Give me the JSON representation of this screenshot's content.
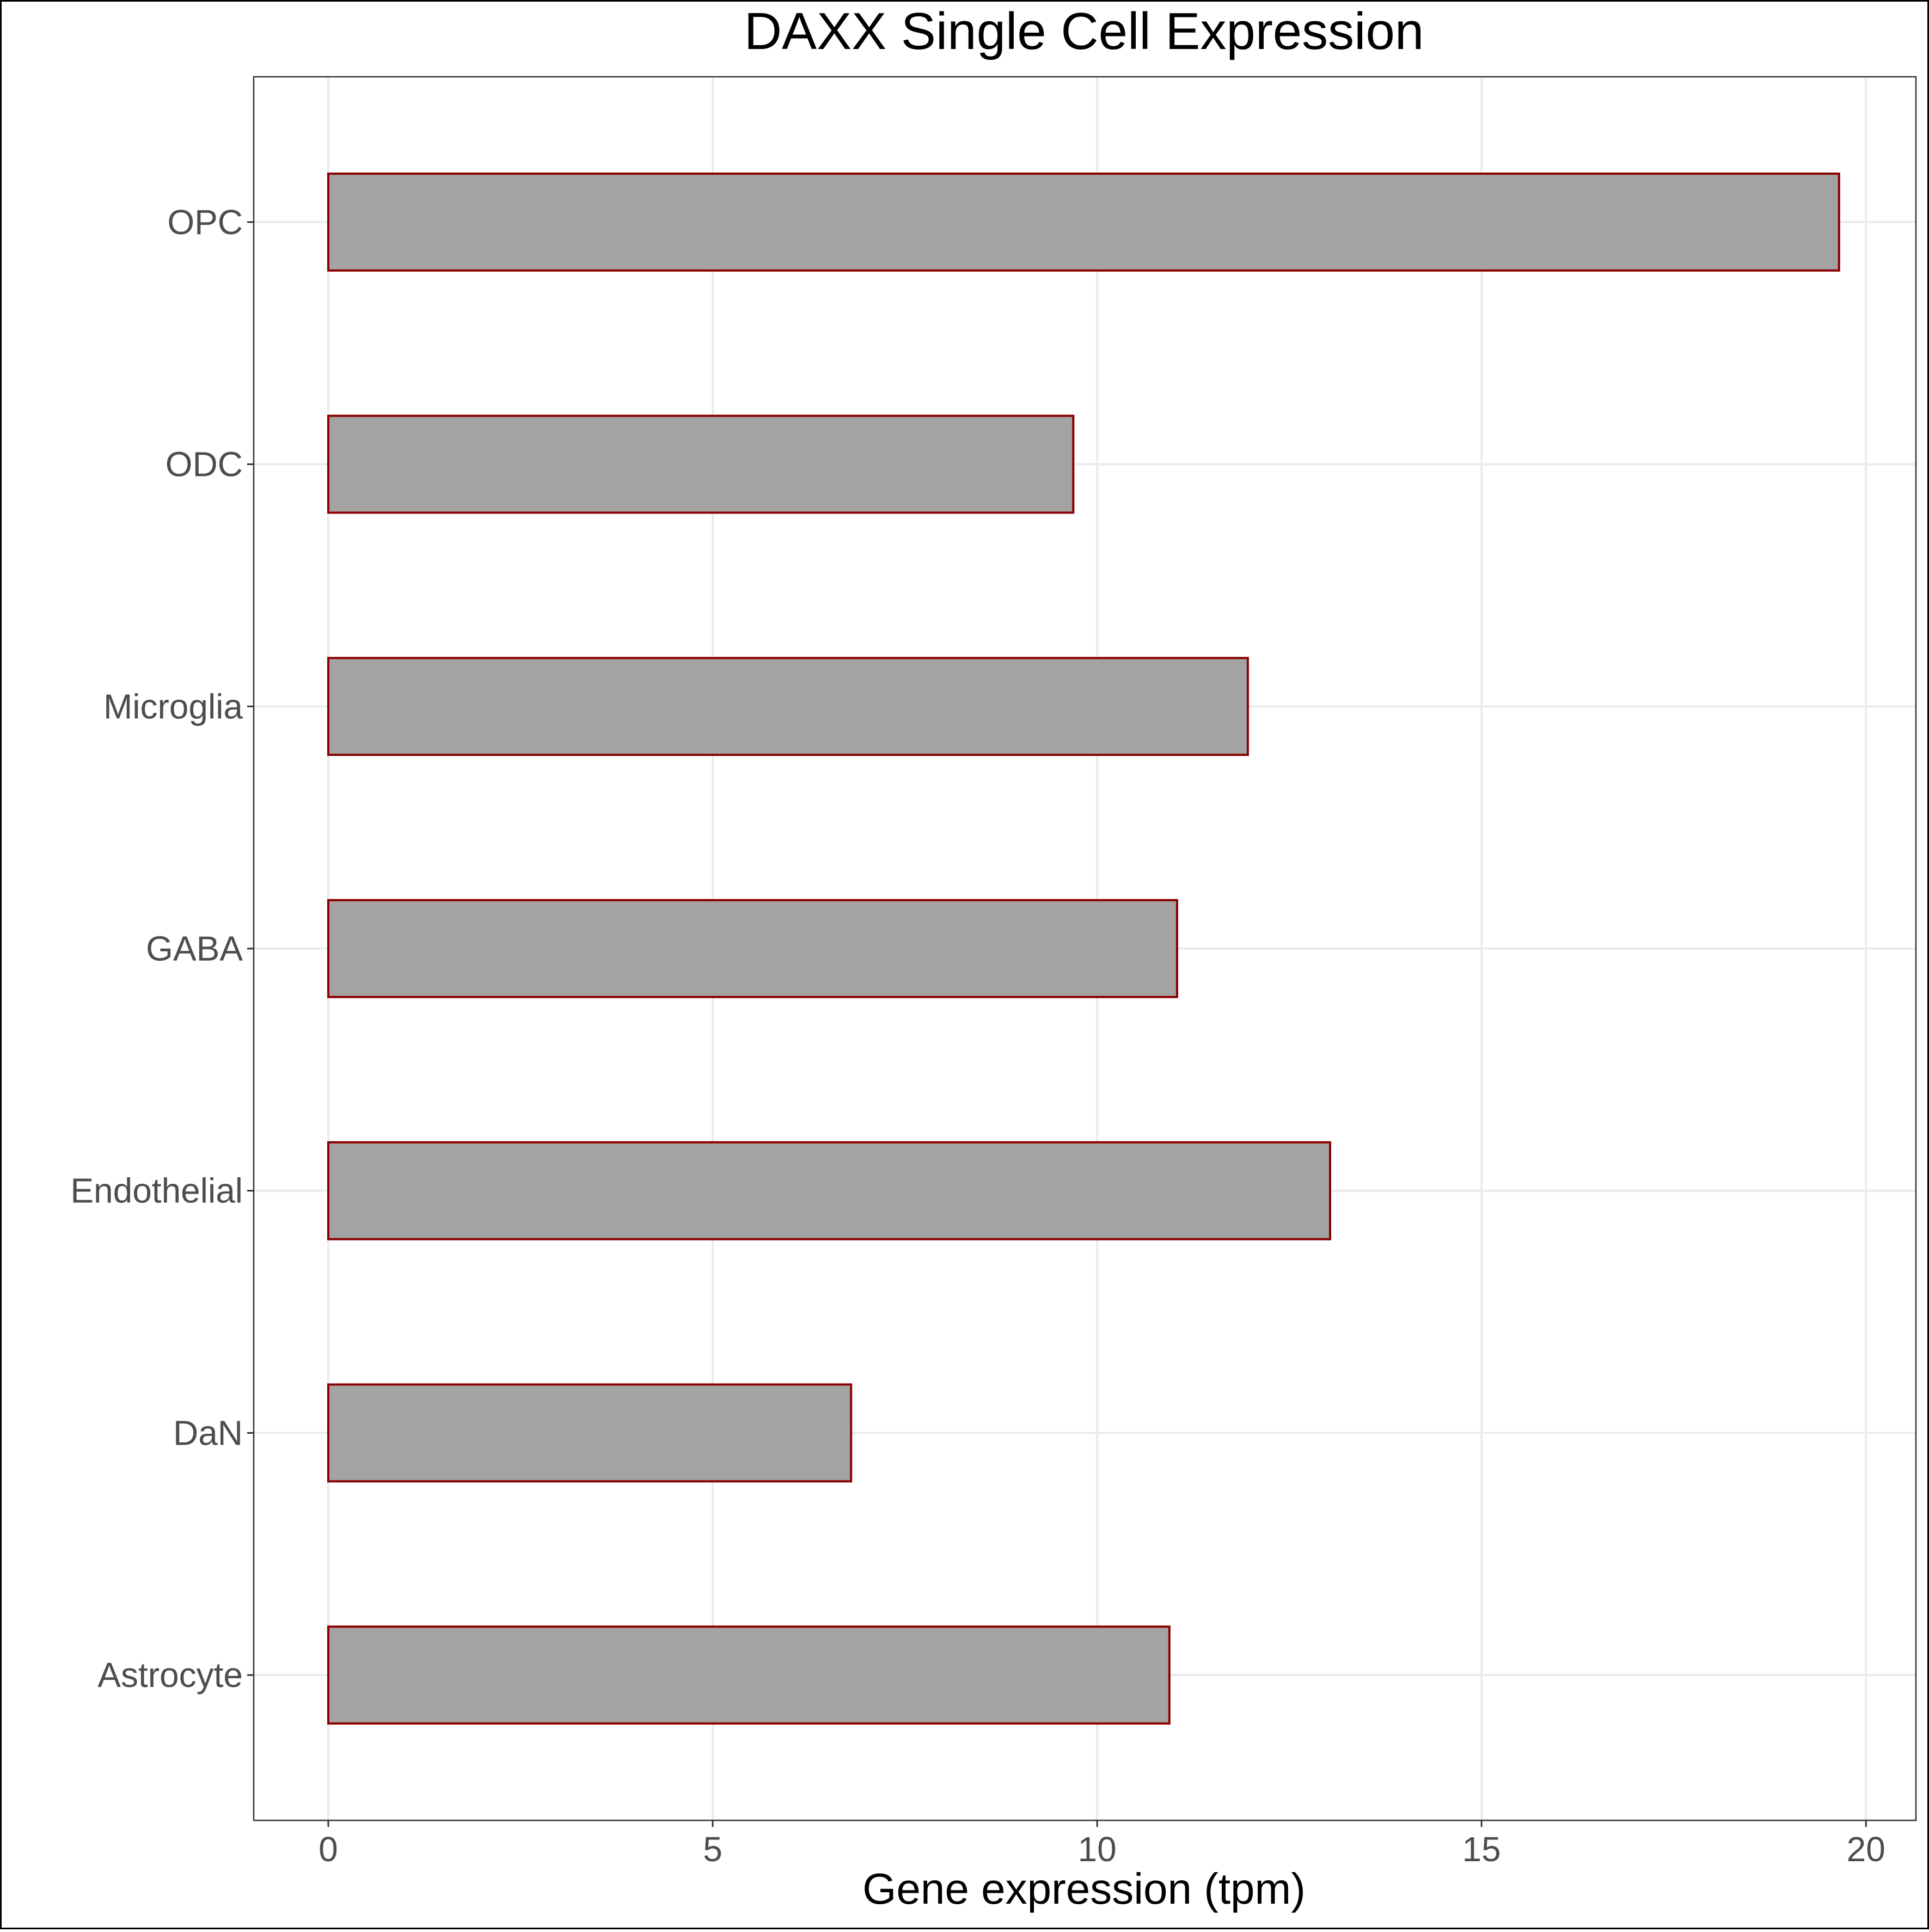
{
  "chart_data": {
    "type": "bar",
    "orientation": "horizontal",
    "title": "DAXX Single Cell Expression",
    "xlabel": "Gene expression (tpm)",
    "ylabel": "",
    "categories": [
      "OPC",
      "ODC",
      "Microglia",
      "GABA",
      "Endothelial",
      "DaN",
      "Astrocyte"
    ],
    "values": [
      19.65,
      9.69,
      11.96,
      11.04,
      13.03,
      6.8,
      10.94
    ],
    "xlim": [
      -0.97,
      20.65
    ],
    "xticks": [
      0,
      5,
      10,
      15,
      20
    ],
    "xtick_labels": [
      "0",
      "5",
      "10",
      "15",
      "20"
    ],
    "grid": true,
    "legend": "none",
    "colors": {
      "bar_fill": "#a3a3a3",
      "bar_stroke": "#8b0000",
      "grid": "#ebebeb",
      "axis_text": "#4d4d4d",
      "title": "#000000"
    }
  }
}
